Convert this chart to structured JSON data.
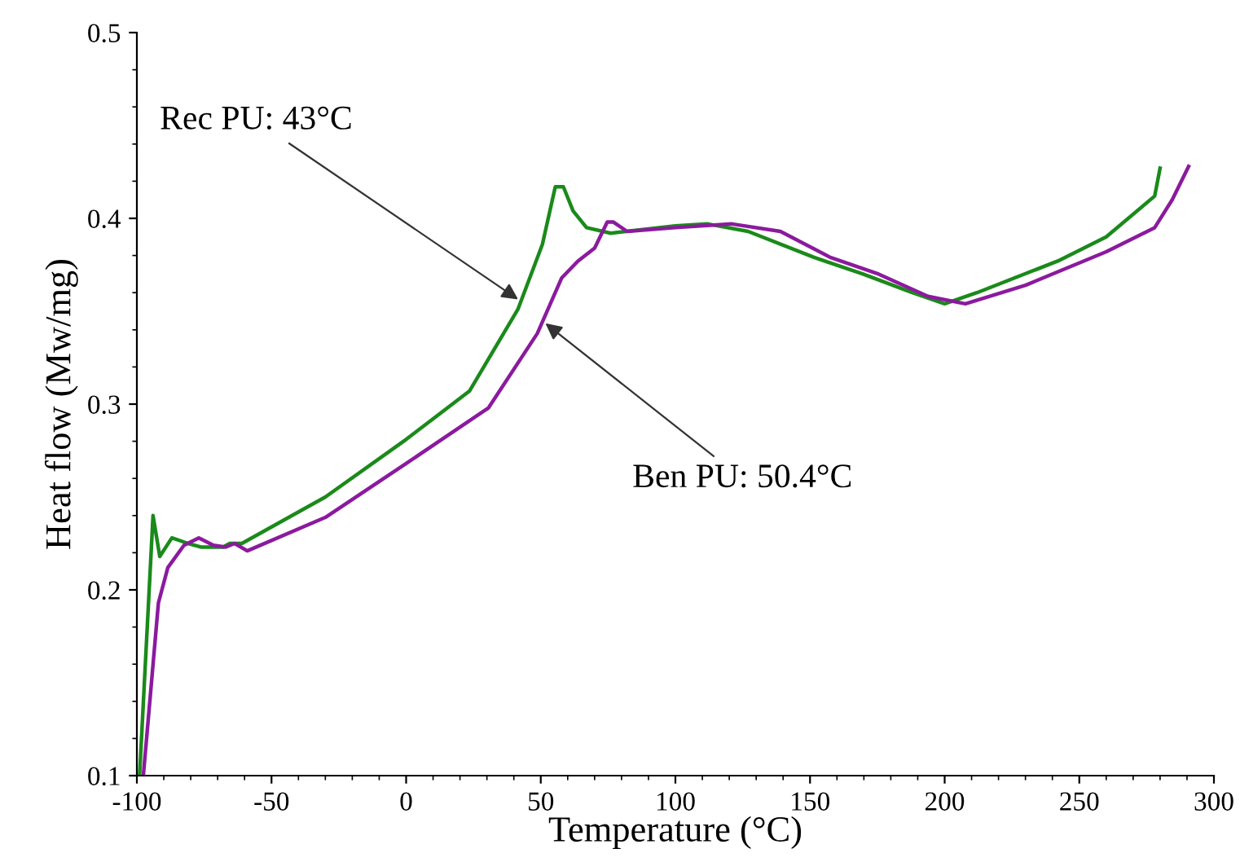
{
  "chart_data": {
    "type": "line",
    "xlabel": "Temperature (°C)",
    "ylabel": "Heat flow (Mw/mg)",
    "xlim": [
      -100,
      300
    ],
    "xticks": [
      -100,
      -50,
      0,
      50,
      100,
      150,
      200,
      250,
      300
    ],
    "ylim": [
      0.1,
      0.5
    ],
    "yticks": [
      0.1,
      0.2,
      0.3,
      0.4,
      0.5
    ],
    "grid": false,
    "legend": false,
    "marker": "none",
    "line_style": "solid",
    "series": [
      {
        "color": "#1a8a1a",
        "x": [
          -99,
          -94,
          -91.5,
          -87,
          -81,
          -76,
          -68,
          -65.5,
          -61,
          -30,
          0,
          23.5,
          41.5,
          50.6,
          55.4,
          58.4,
          62,
          67,
          76,
          100,
          112,
          127,
          151.5,
          169.7,
          188,
          200,
          212,
          242,
          260,
          278,
          280
        ],
        "values": [
          0.1,
          0.24,
          0.218,
          0.228,
          0.225,
          0.223,
          0.223,
          0.225,
          0.225,
          0.25,
          0.281,
          0.307,
          0.351,
          0.386,
          0.417,
          0.417,
          0.404,
          0.395,
          0.392,
          0.396,
          0.397,
          0.393,
          0.379,
          0.37,
          0.36,
          0.354,
          0.36,
          0.377,
          0.39,
          0.412,
          0.427
        ]
      },
      {
        "color": "#8b1a9e",
        "x": [
          -97.6,
          -92,
          -88.5,
          -82.5,
          -77,
          -71.6,
          -67,
          -63.7,
          -59,
          -30,
          0,
          30.6,
          48.7,
          57.8,
          63.8,
          70,
          74.7,
          77,
          82,
          100,
          121,
          139,
          157.5,
          175.5,
          193.8,
          207.7,
          230,
          260,
          278,
          284.5,
          290.6
        ],
        "values": [
          0.1,
          0.193,
          0.212,
          0.224,
          0.228,
          0.224,
          0.223,
          0.225,
          0.221,
          0.239,
          0.268,
          0.298,
          0.338,
          0.368,
          0.377,
          0.384,
          0.398,
          0.398,
          0.393,
          0.395,
          0.397,
          0.393,
          0.379,
          0.37,
          0.358,
          0.354,
          0.364,
          0.382,
          0.395,
          0.41,
          0.428
        ]
      }
    ],
    "annotations": [
      {
        "text": "Rec PU: 43°C",
        "x": 43,
        "y": 0.355
      },
      {
        "text": "Ben PU: 50.4°C",
        "x": 50.4,
        "y": 0.345
      }
    ]
  }
}
